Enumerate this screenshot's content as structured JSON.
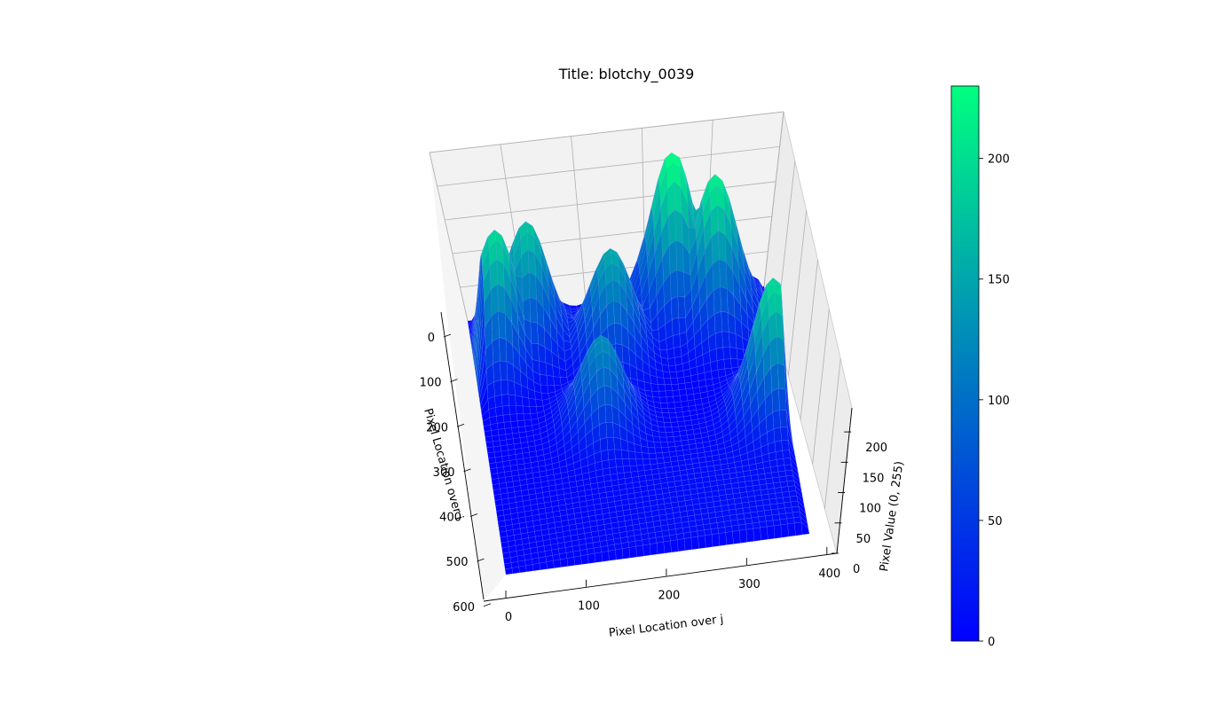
{
  "chart_data": {
    "type": "surface3d",
    "title": "Title: blotchy_0039",
    "xlabel": "Pixel Location over j",
    "ylabel": "Pixel Location over i",
    "zlabel": "Pixel Value (0, 255)",
    "x_ticks": [
      0,
      100,
      200,
      300,
      400
    ],
    "y_ticks": [
      0,
      100,
      200,
      300,
      400,
      500,
      600
    ],
    "z_ticks": [
      0,
      50,
      100,
      150,
      200
    ],
    "xlim": [
      0,
      440
    ],
    "ylim": [
      0,
      640
    ],
    "zlim": [
      0,
      230
    ],
    "colormap": [
      "#0000ff",
      "#00ff80"
    ],
    "colorbar": {
      "ticks": [
        0,
        50,
        100,
        150,
        200
      ],
      "range": [
        0,
        230
      ]
    },
    "grid": true,
    "peaks": [
      {
        "j": 30,
        "i": 120,
        "value": 200
      },
      {
        "j": 80,
        "i": 80,
        "value": 180
      },
      {
        "j": 200,
        "i": 130,
        "value": 150
      },
      {
        "j": 170,
        "i": 300,
        "value": 130
      },
      {
        "j": 300,
        "i": 40,
        "value": 230
      },
      {
        "j": 360,
        "i": 80,
        "value": 210
      },
      {
        "j": 420,
        "i": 330,
        "value": 200
      }
    ]
  }
}
